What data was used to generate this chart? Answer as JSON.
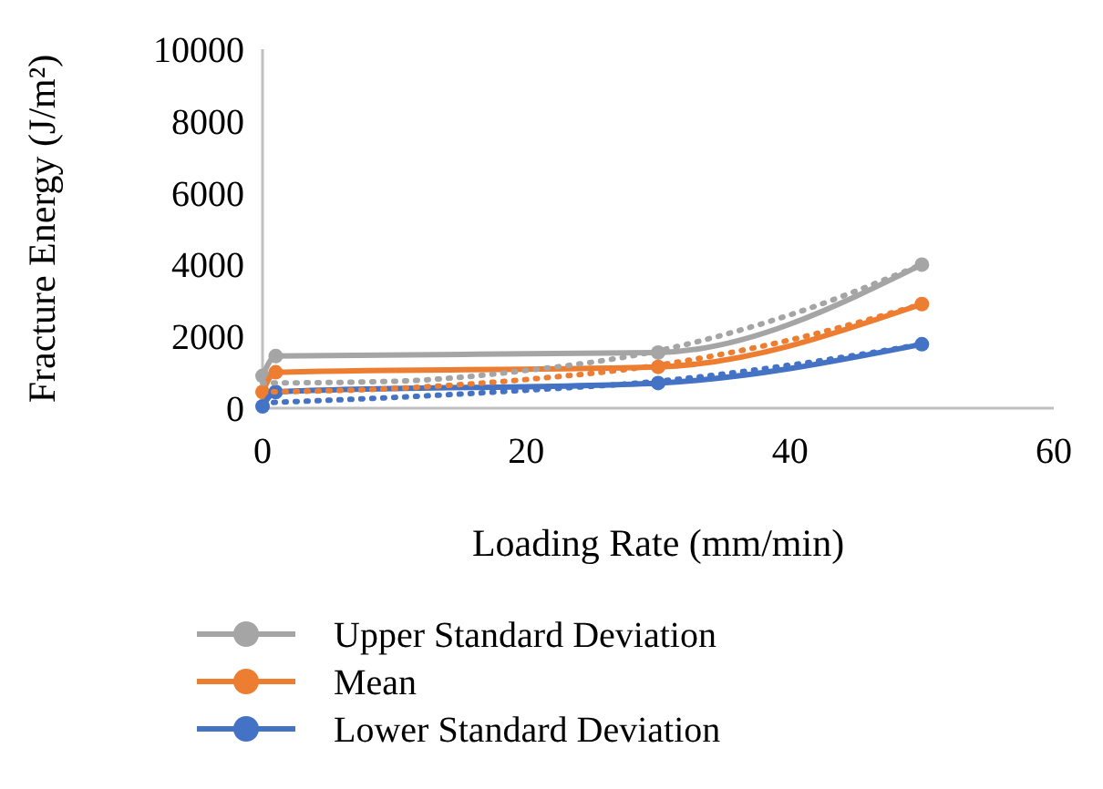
{
  "chart_data": {
    "type": "line",
    "xlabel": "Loading Rate (mm/min)",
    "ylabel": "Fracture Energy (J/m²)",
    "xlim": [
      0,
      60
    ],
    "xticks": [
      0,
      20,
      40,
      60
    ],
    "ylim": [
      0,
      10000
    ],
    "yticks": [
      0,
      2000,
      4000,
      6000,
      8000,
      10000
    ],
    "grid": false,
    "legend": "bottom",
    "marker": "circle",
    "line_style": "solid",
    "x": [
      0,
      1,
      30,
      50
    ],
    "series": [
      {
        "name": "Upper Standard Deviation",
        "color": "#a5a5a5",
        "values": [
          900,
          1450,
          1550,
          4000
        ]
      },
      {
        "name": "Mean",
        "color": "#ed7d31",
        "values": [
          450,
          1000,
          1150,
          2900
        ]
      },
      {
        "name": "Lower Standard Deviation",
        "color": "#4472c4",
        "values": [
          50,
          450,
          700,
          1780
        ]
      },
      {
        "color": "#a5a5a5",
        "marker": "none",
        "line_style": "dotted",
        "x": [
          0,
          10,
          20,
          30,
          40,
          50
        ],
        "values": [
          700,
          750,
          1050,
          1600,
          2600,
          4000
        ]
      },
      {
        "color": "#ed7d31",
        "marker": "none",
        "line_style": "dotted",
        "x": [
          0,
          10,
          20,
          30,
          40,
          50
        ],
        "values": [
          450,
          550,
          800,
          1200,
          1900,
          2900
        ]
      },
      {
        "color": "#4472c4",
        "marker": "none",
        "line_style": "dotted",
        "x": [
          0,
          10,
          20,
          30,
          40,
          50
        ],
        "values": [
          150,
          300,
          500,
          750,
          1200,
          1780
        ]
      }
    ]
  }
}
